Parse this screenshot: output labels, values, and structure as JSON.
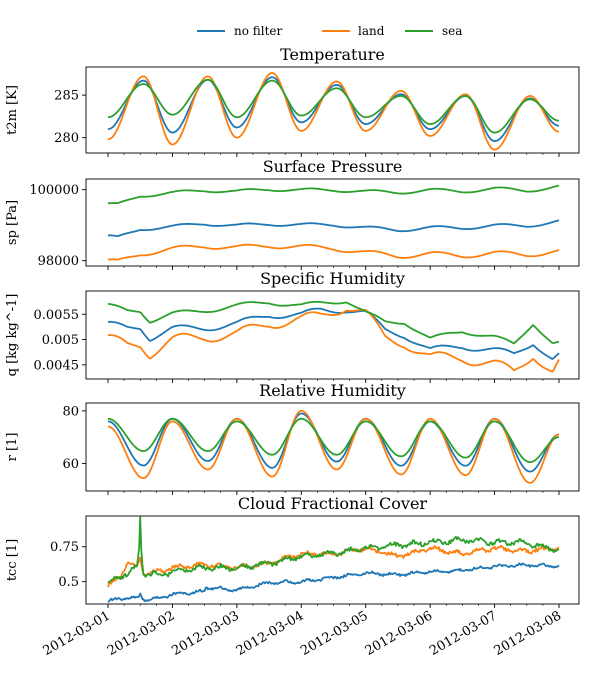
{
  "colors": {
    "no_filter": "#1f77b4",
    "land": "#ff7f0e",
    "sea": "#2ca02c"
  },
  "legend": {
    "placement": "top-center",
    "items": [
      "no filter",
      "land",
      "sea"
    ]
  },
  "chart_data": [
    {
      "type": "line",
      "title": "Temperature",
      "ylabel": "t2m [K]",
      "xlabel": "",
      "yticks": [
        280,
        285
      ],
      "ylim": [
        278.2,
        288.3
      ],
      "xlim": [
        "2012-03-01",
        "2012-03-08"
      ],
      "grid": false,
      "series_model": "diurnal",
      "series": [
        {
          "name": "no filter",
          "color_key": "no_filter",
          "days": [
            [
              281.0,
              286.7
            ],
            [
              280.6,
              286.8
            ],
            [
              281.2,
              287.1
            ],
            [
              281.8,
              286.2
            ],
            [
              281.6,
              285.1
            ],
            [
              281.0,
              284.9
            ],
            [
              279.6,
              284.6
            ],
            [
              281.4,
              null
            ]
          ]
        },
        {
          "name": "land",
          "color_key": "land",
          "days": [
            [
              279.8,
              287.2
            ],
            [
              279.2,
              287.2
            ],
            [
              280.0,
              287.6
            ],
            [
              280.8,
              286.6
            ],
            [
              280.8,
              285.5
            ],
            [
              280.2,
              285.1
            ],
            [
              278.6,
              284.9
            ],
            [
              280.7,
              null
            ]
          ]
        },
        {
          "name": "sea",
          "color_key": "sea",
          "days": [
            [
              282.4,
              286.3
            ],
            [
              282.7,
              286.8
            ],
            [
              282.4,
              286.7
            ],
            [
              282.6,
              285.8
            ],
            [
              282.4,
              284.9
            ],
            [
              281.6,
              284.9
            ],
            [
              280.6,
              284.5
            ],
            [
              282.0,
              null
            ]
          ]
        }
      ]
    },
    {
      "type": "line",
      "title": "Surface Pressure",
      "ylabel": "sp [Pa]",
      "xlabel": "",
      "yticks": [
        98000,
        100000
      ],
      "ylim": [
        97850,
        100300
      ],
      "xlim": [
        "2012-03-01",
        "2012-03-08"
      ],
      "grid": false,
      "series_model": "wave",
      "series": [
        {
          "name": "no filter",
          "color_key": "no_filter",
          "x": [
            0,
            0.15,
            0.5,
            1.0,
            1.5,
            2.0,
            2.5,
            3.0,
            3.5,
            4.0,
            4.5,
            5.0,
            5.5,
            6.0,
            6.5,
            7.0
          ],
          "values": [
            98680,
            98640,
            98900,
            98950,
            99050,
            98980,
            99040,
            99000,
            99020,
            98920,
            98870,
            98920,
            98930,
            98980,
            98990,
            99100
          ],
          "amp": 50
        },
        {
          "name": "land",
          "color_key": "land",
          "x": [
            0,
            0.15,
            0.5,
            1.0,
            1.5,
            2.0,
            2.5,
            3.0,
            3.5,
            4.0,
            4.5,
            5.0,
            5.5,
            6.0,
            6.5,
            7.0
          ],
          "values": [
            97980,
            97960,
            98200,
            98320,
            98420,
            98360,
            98430,
            98380,
            98360,
            98220,
            98140,
            98180,
            98150,
            98200,
            98180,
            98250
          ],
          "amp": 70
        },
        {
          "name": "sea",
          "color_key": "sea",
          "x": [
            0,
            0.15,
            0.5,
            1.0,
            1.5,
            2.0,
            2.5,
            3.0,
            3.5,
            4.0,
            4.5,
            5.0,
            5.5,
            6.0,
            6.5,
            7.0
          ],
          "values": [
            99580,
            99570,
            99840,
            99900,
            99990,
            99940,
            100020,
            99980,
            100000,
            99940,
            99930,
            99980,
            99960,
            100020,
            99980,
            100080
          ],
          "amp": 50
        }
      ]
    },
    {
      "type": "line",
      "title": "Specific Humidity",
      "ylabel": "q [kg kg^-1]",
      "xlabel": "",
      "yticks": [
        0.0045,
        0.005,
        0.0055
      ],
      "ylim": [
        0.00422,
        0.00596
      ],
      "xlim": [
        "2012-03-01",
        "2012-03-08"
      ],
      "grid": false,
      "series_model": "wave",
      "series": [
        {
          "name": "no filter",
          "color_key": "no_filter",
          "x": [
            0,
            0.3,
            0.5,
            0.65,
            1.0,
            1.5,
            2.0,
            2.5,
            3.0,
            3.3,
            3.7,
            4.0,
            4.3,
            4.6,
            5.0,
            5.5,
            6.0,
            6.3,
            6.6,
            6.9,
            7.0
          ],
          "values": [
            0.0053,
            0.00522,
            0.00526,
            0.00504,
            0.0052,
            0.00524,
            0.0053,
            0.0055,
            0.00548,
            0.00558,
            0.0056,
            0.00552,
            0.00518,
            0.0051,
            0.00478,
            0.00488,
            0.00478,
            0.0047,
            0.00496,
            0.0046,
            0.00468
          ],
          "amp": 7e-05
        },
        {
          "name": "land",
          "color_key": "land",
          "x": [
            0,
            0.3,
            0.5,
            0.65,
            1.0,
            1.5,
            2.0,
            2.5,
            3.0,
            3.3,
            3.7,
            4.0,
            4.3,
            4.6,
            5.0,
            5.5,
            6.0,
            6.3,
            6.6,
            6.9,
            7.0
          ],
          "values": [
            0.005,
            0.00488,
            0.00494,
            0.00474,
            0.00496,
            0.00508,
            0.00508,
            0.00534,
            0.00538,
            0.00546,
            0.00568,
            0.0055,
            0.00502,
            0.00496,
            0.00462,
            0.00466,
            0.0045,
            0.00434,
            0.00474,
            0.00434,
            0.00452
          ],
          "amp": 0.00012
        },
        {
          "name": "sea",
          "color_key": "sea",
          "x": [
            0,
            0.3,
            0.5,
            0.65,
            1.0,
            1.5,
            2.0,
            2.5,
            3.0,
            3.3,
            3.7,
            4.0,
            4.3,
            4.6,
            5.0,
            5.5,
            6.0,
            6.3,
            6.6,
            6.9,
            7.0
          ],
          "values": [
            0.00567,
            0.00556,
            0.00558,
            0.00538,
            0.0055,
            0.00558,
            0.00566,
            0.00575,
            0.00566,
            0.00572,
            0.00578,
            0.00552,
            0.00534,
            0.00536,
            0.005,
            0.00518,
            0.00504,
            0.0049,
            0.00534,
            0.00492,
            0.00492
          ],
          "amp": 5e-05
        }
      ]
    },
    {
      "type": "line",
      "title": "Relative Humidity",
      "ylabel": "r [1]",
      "xlabel": "",
      "yticks": [
        60,
        80
      ],
      "ylim": [
        49.5,
        83
      ],
      "xlim": [
        "2012-03-01",
        "2012-03-08"
      ],
      "grid": false,
      "series_model": "diurnal",
      "series": [
        {
          "name": "no filter",
          "color_key": "no_filter",
          "days": [
            [
              76.0,
              59.2
            ],
            [
              77.0,
              60.9
            ],
            [
              77.0,
              58.3
            ],
            [
              79.0,
              60.7
            ],
            [
              77.0,
              59.1
            ],
            [
              76.0,
              59.1
            ],
            [
              77.0,
              56.9
            ],
            [
              71.0,
              null
            ]
          ]
        },
        {
          "name": "land",
          "color_key": "land",
          "days": [
            [
              74.0,
              54.4
            ],
            [
              76.0,
              57.7
            ],
            [
              77.0,
              55.0
            ],
            [
              80.0,
              57.7
            ],
            [
              77.0,
              55.8
            ],
            [
              77.0,
              55.5
            ],
            [
              77.0,
              52.6
            ],
            [
              71.0,
              null
            ]
          ]
        },
        {
          "name": "sea",
          "color_key": "sea",
          "days": [
            [
              77.0,
              64.7
            ],
            [
              77.0,
              64.7
            ],
            [
              76.0,
              63.3
            ],
            [
              77.0,
              63.3
            ],
            [
              76.0,
              62.7
            ],
            [
              76.0,
              62.2
            ],
            [
              76.0,
              60.5
            ],
            [
              70.0,
              null
            ]
          ]
        }
      ]
    },
    {
      "type": "line",
      "title": "Cloud Fractional Cover",
      "ylabel": "tcc [1]",
      "xlabel": "",
      "yticks": [
        0.5,
        0.75
      ],
      "ylim": [
        0.34,
        0.97
      ],
      "xlim": [
        "2012-03-01",
        "2012-03-08"
      ],
      "grid": false,
      "series_model": "noisy",
      "series": [
        {
          "name": "no filter",
          "color_key": "no_filter",
          "x": [
            0,
            0.2,
            0.45,
            0.5,
            0.53,
            0.58,
            0.8,
            1.0,
            1.5,
            1.5,
            2.0,
            2.5,
            3.0,
            3.5,
            4.0,
            4.5,
            5.0,
            5.5,
            6.0,
            6.5,
            7.0
          ],
          "values": [
            0.36,
            0.38,
            0.38,
            0.41,
            0.38,
            0.37,
            0.38,
            0.41,
            0.43,
            0.46,
            0.44,
            0.49,
            0.5,
            0.53,
            0.56,
            0.55,
            0.57,
            0.58,
            0.61,
            0.62,
            0.61
          ],
          "noise": 0.008
        },
        {
          "name": "land",
          "color_key": "land",
          "x": [
            0,
            0.2,
            0.3,
            0.45,
            0.5,
            0.53,
            0.58,
            0.8,
            1.0,
            1.5,
            2.0,
            2.5,
            3.0,
            3.5,
            4.0,
            4.5,
            5.0,
            5.5,
            6.0,
            6.5,
            7.0
          ],
          "values": [
            0.47,
            0.54,
            0.64,
            0.6,
            0.68,
            0.58,
            0.56,
            0.57,
            0.6,
            0.62,
            0.6,
            0.63,
            0.7,
            0.7,
            0.74,
            0.68,
            0.74,
            0.7,
            0.74,
            0.72,
            0.74
          ],
          "noise": 0.012
        },
        {
          "name": "sea",
          "color_key": "sea",
          "x": [
            0,
            0.2,
            0.45,
            0.48,
            0.5,
            0.52,
            0.55,
            0.8,
            1.0,
            1.5,
            2.0,
            2.5,
            3.0,
            3.5,
            4.0,
            4.5,
            5.0,
            5.5,
            6.0,
            6.5,
            7.0
          ],
          "values": [
            0.5,
            0.54,
            0.6,
            0.7,
            0.96,
            0.7,
            0.56,
            0.55,
            0.57,
            0.6,
            0.6,
            0.63,
            0.68,
            0.7,
            0.74,
            0.76,
            0.78,
            0.8,
            0.78,
            0.78,
            0.72
          ],
          "noise": 0.014
        }
      ]
    }
  ],
  "xaxis": {
    "tick_labels": [
      "2012-03-01",
      "2012-03-02",
      "2012-03-03",
      "2012-03-04",
      "2012-03-05",
      "2012-03-06",
      "2012-03-07",
      "2012-03-08"
    ],
    "label_rotation_deg": -30
  }
}
